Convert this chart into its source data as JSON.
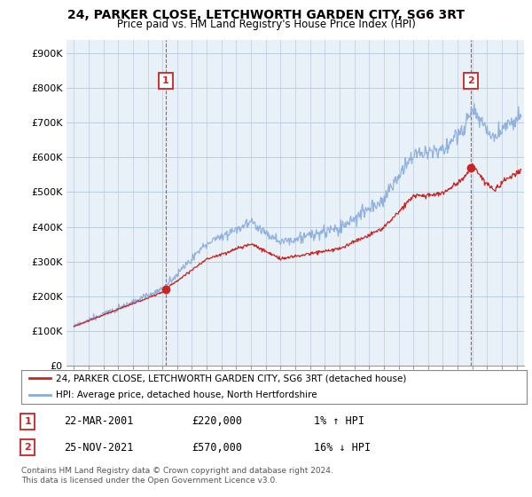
{
  "title": "24, PARKER CLOSE, LETCHWORTH GARDEN CITY, SG6 3RT",
  "subtitle": "Price paid vs. HM Land Registry's House Price Index (HPI)",
  "ylabel_ticks": [
    "£0",
    "£100K",
    "£200K",
    "£300K",
    "£400K",
    "£500K",
    "£600K",
    "£700K",
    "£800K",
    "£900K"
  ],
  "ytick_values": [
    0,
    100000,
    200000,
    300000,
    400000,
    500000,
    600000,
    700000,
    800000,
    900000
  ],
  "ylim": [
    0,
    940000
  ],
  "xlim_start": 1994.5,
  "xlim_end": 2025.5,
  "hpi_color": "#88aadd",
  "sale_color": "#cc2222",
  "chart_bg": "#e8f0f8",
  "sale1_x": 2001.22,
  "sale1_y": 220000,
  "sale2_x": 2021.9,
  "sale2_y": 570000,
  "annotation1_label": "1",
  "annotation2_label": "2",
  "legend_line1": "24, PARKER CLOSE, LETCHWORTH GARDEN CITY, SG6 3RT (detached house)",
  "legend_line2": "HPI: Average price, detached house, North Hertfordshire",
  "table_row1_num": "1",
  "table_row1_date": "22-MAR-2001",
  "table_row1_price": "£220,000",
  "table_row1_hpi": "1% ↑ HPI",
  "table_row2_num": "2",
  "table_row2_date": "25-NOV-2021",
  "table_row2_price": "£570,000",
  "table_row2_hpi": "16% ↓ HPI",
  "footnote": "Contains HM Land Registry data © Crown copyright and database right 2024.\nThis data is licensed under the Open Government Licence v3.0.",
  "background_color": "#ffffff",
  "grid_color": "#bbccdd"
}
